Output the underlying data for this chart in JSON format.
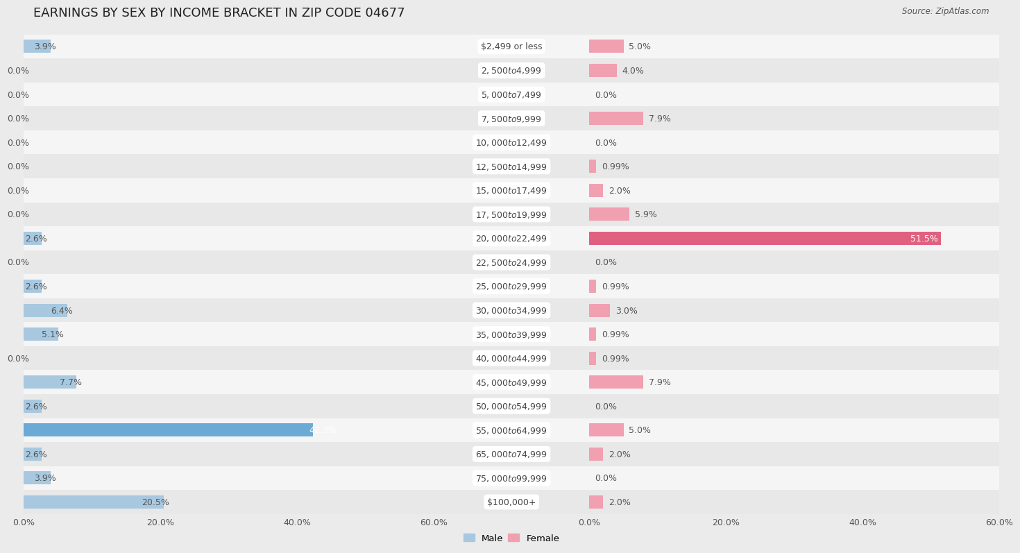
{
  "title": "EARNINGS BY SEX BY INCOME BRACKET IN ZIP CODE 04677",
  "source": "Source: ZipAtlas.com",
  "categories": [
    "$2,499 or less",
    "$2,500 to $4,999",
    "$5,000 to $7,499",
    "$7,500 to $9,999",
    "$10,000 to $12,499",
    "$12,500 to $14,999",
    "$15,000 to $17,499",
    "$17,500 to $19,999",
    "$20,000 to $22,499",
    "$22,500 to $24,999",
    "$25,000 to $29,999",
    "$30,000 to $34,999",
    "$35,000 to $39,999",
    "$40,000 to $44,999",
    "$45,000 to $49,999",
    "$50,000 to $54,999",
    "$55,000 to $64,999",
    "$65,000 to $74,999",
    "$75,000 to $99,999",
    "$100,000+"
  ],
  "male": [
    3.9,
    0.0,
    0.0,
    0.0,
    0.0,
    0.0,
    0.0,
    0.0,
    2.6,
    0.0,
    2.6,
    6.4,
    5.1,
    0.0,
    7.7,
    2.6,
    42.3,
    2.6,
    3.9,
    20.5
  ],
  "female": [
    5.0,
    4.0,
    0.0,
    7.9,
    0.0,
    0.99,
    2.0,
    5.9,
    51.5,
    0.0,
    0.99,
    3.0,
    0.99,
    0.99,
    7.9,
    0.0,
    5.0,
    2.0,
    0.0,
    2.0
  ],
  "male_color": "#a8c8e0",
  "female_color": "#f0a0b0",
  "male_highlight_color": "#6aaad4",
  "female_highlight_color": "#e06080",
  "row_color_even": "#f5f5f5",
  "row_color_odd": "#e8e8e8",
  "bg_color": "#ebebeb",
  "label_bg_color": "#ffffff",
  "xlim": 60.0,
  "bar_height": 0.55,
  "title_fontsize": 13,
  "label_fontsize": 9,
  "category_fontsize": 9,
  "source_fontsize": 8.5
}
